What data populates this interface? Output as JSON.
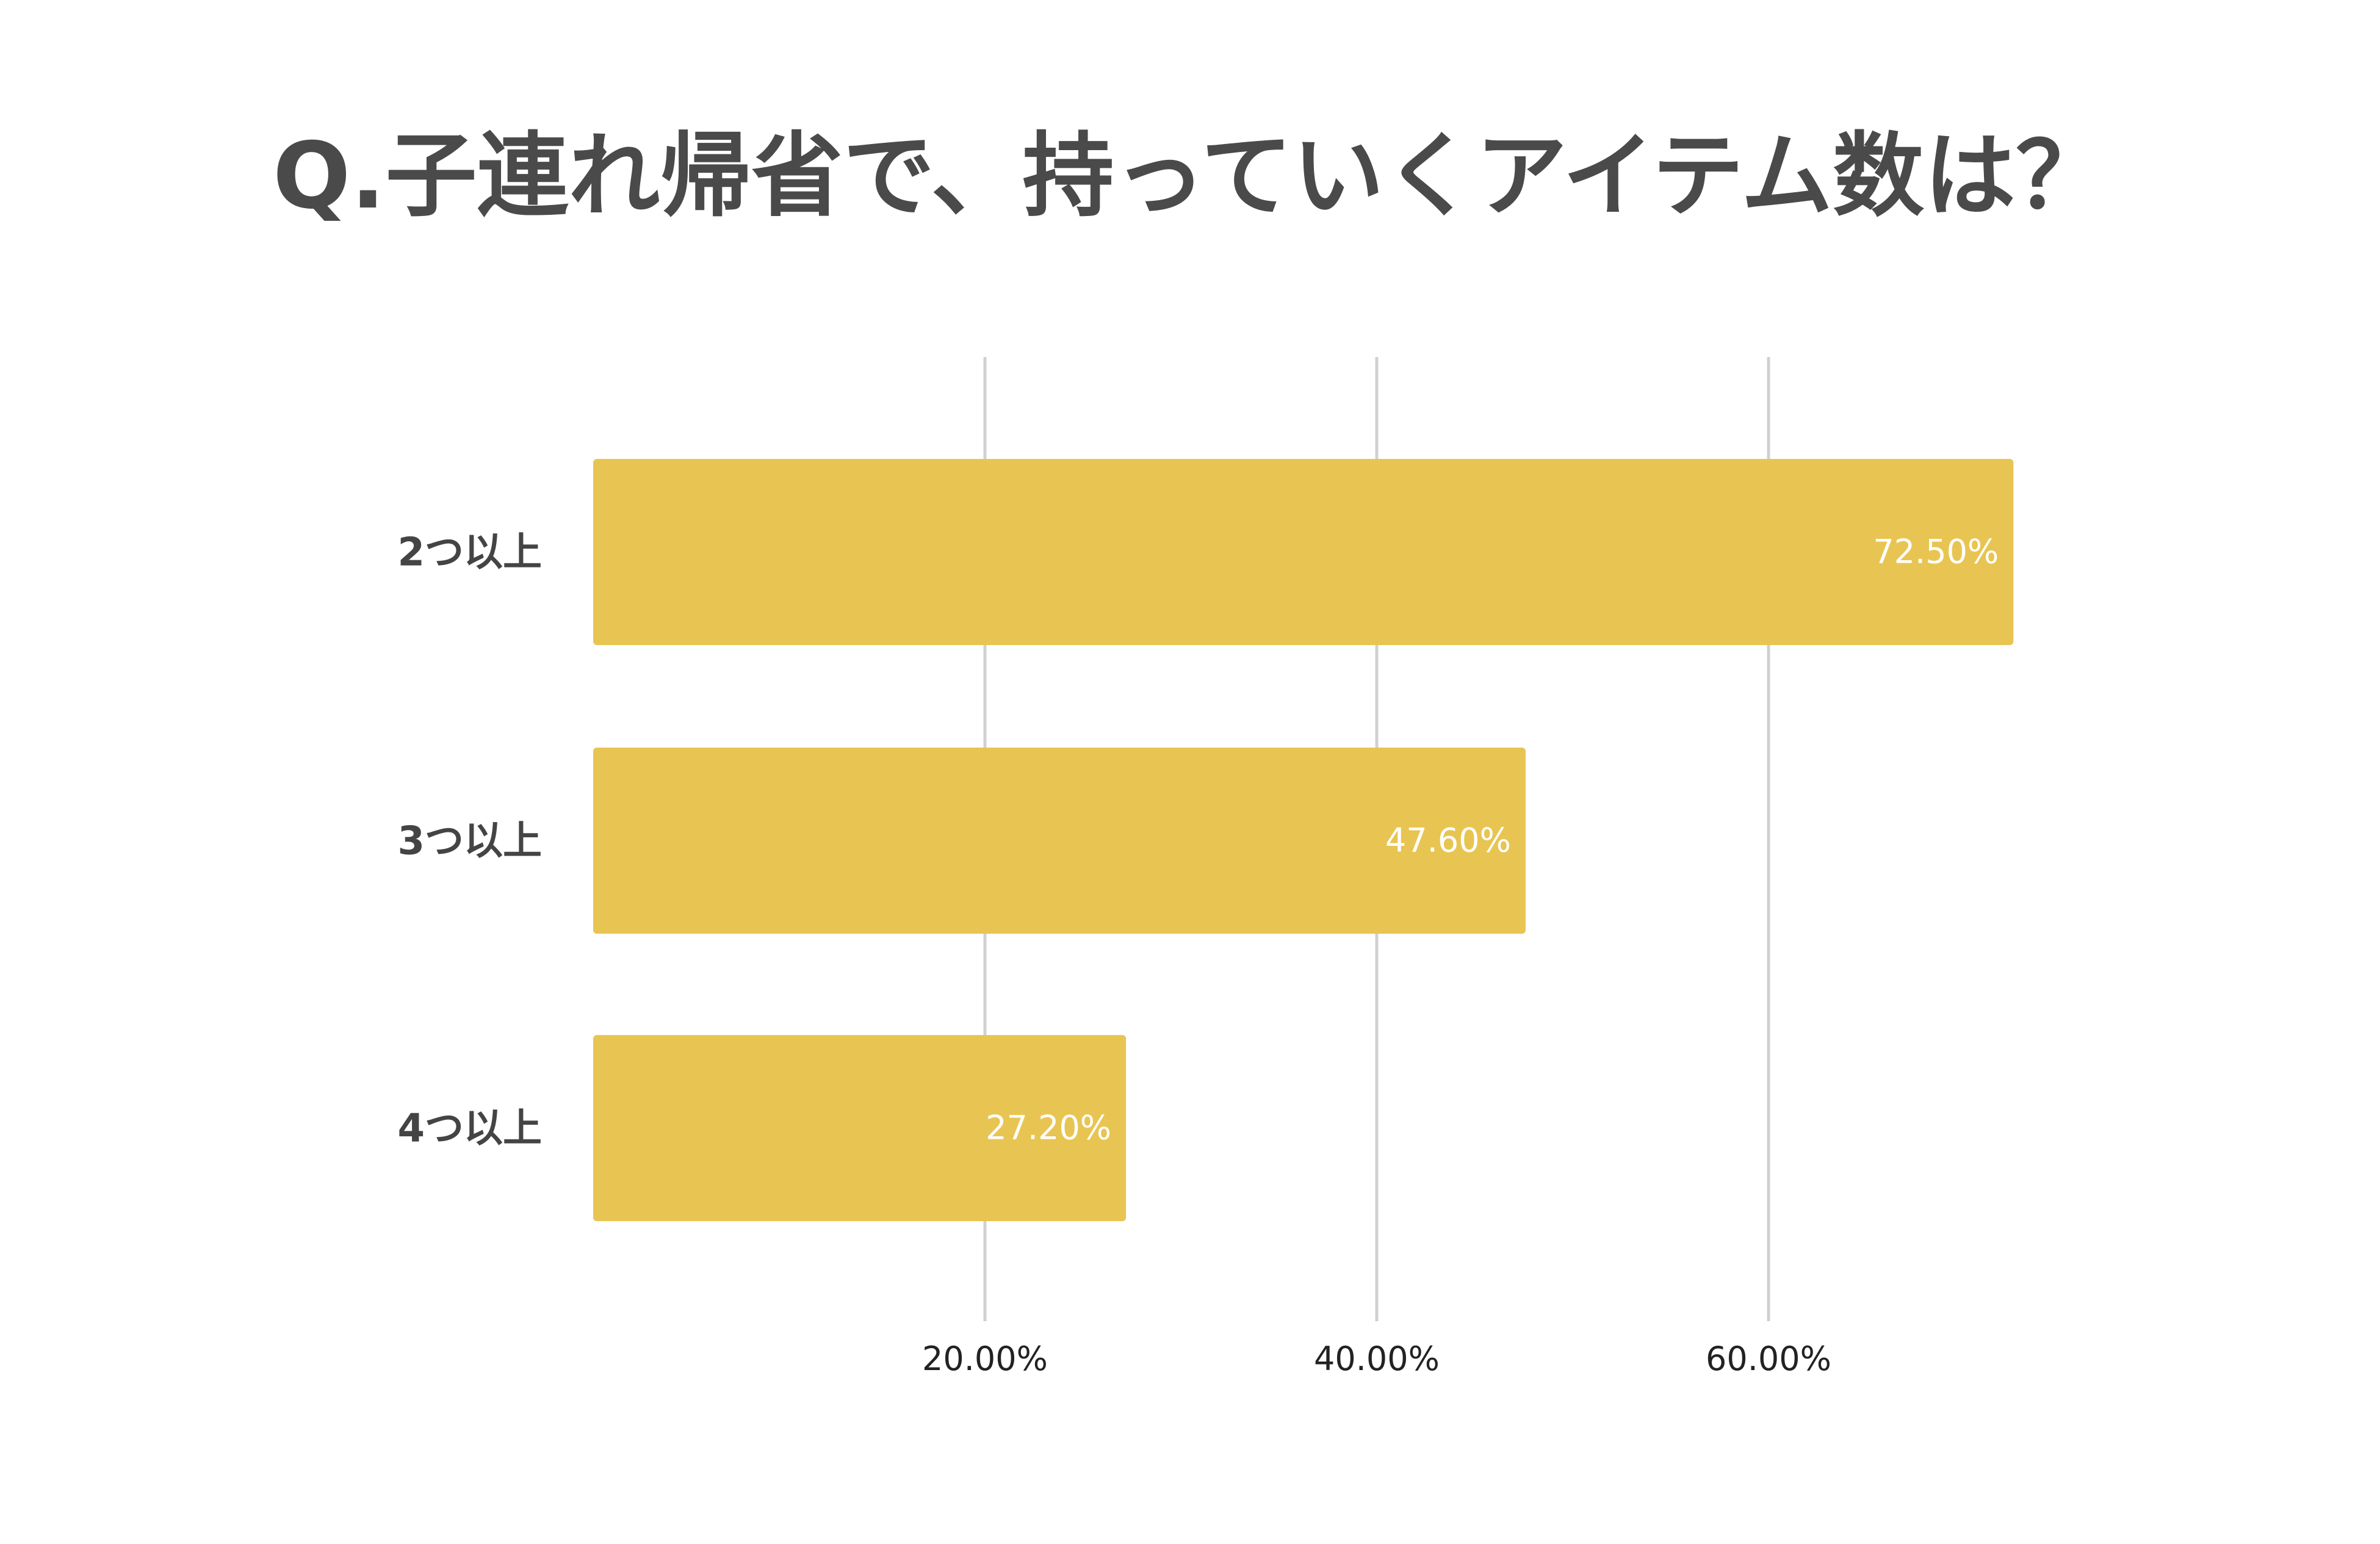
{
  "chart_data": {
    "type": "bar",
    "orientation": "horizontal",
    "title": "Q.子連れ帰省で、持っていくアイテム数は？",
    "categories": [
      "2つ以上",
      "3つ以上",
      "4つ以上"
    ],
    "values": [
      72.5,
      47.6,
      27.2
    ],
    "value_labels": [
      "72.50%",
      "47.60%",
      "27.20%"
    ],
    "x_ticks": [
      20,
      40,
      60
    ],
    "x_tick_labels": [
      "20.00%",
      "40.00%",
      "60.00%"
    ],
    "xlim": [
      0,
      80
    ],
    "grid": true,
    "legend": "none",
    "bar_color": "#E8C552",
    "grid_color": "#d0d0d0",
    "value_label_color": "#ffffff"
  }
}
